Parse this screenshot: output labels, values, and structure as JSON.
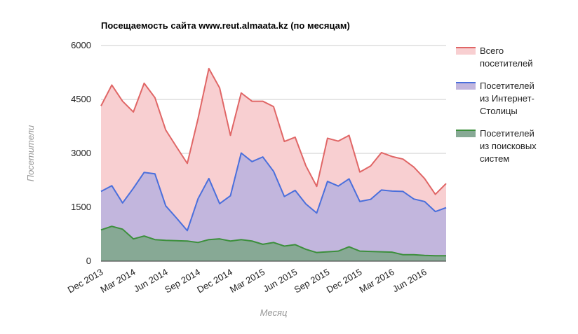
{
  "chart_data": {
    "type": "area",
    "title": "Посещаемость сайта www.reut.almaata.kz (по месяцам)",
    "xlabel": "Месяц",
    "ylabel": "Посетители",
    "ylim": [
      0,
      6000
    ],
    "yticks": [
      "0",
      "1500",
      "3000",
      "4500",
      "6000"
    ],
    "grid": true,
    "legend": "right",
    "x": [
      "Dec 2013",
      "Jan 2014",
      "Feb 2014",
      "Mar 2014",
      "Apr 2014",
      "May 2014",
      "Jun 2014",
      "Jul 2014",
      "Aug 2014",
      "Sep 2014",
      "Oct 2014",
      "Nov 2014",
      "Dec 2014",
      "Jan 2015",
      "Feb 2015",
      "Mar 2015",
      "Apr 2015",
      "May 2015",
      "Jun 2015",
      "Jul 2015",
      "Aug 2015",
      "Sep 2015",
      "Oct 2015",
      "Nov 2015",
      "Dec 2015",
      "Jan 2016",
      "Feb 2016",
      "Mar 2016",
      "Apr 2016",
      "May 2016",
      "Jun 2016",
      "Jul 2016",
      "Aug 2016"
    ],
    "xtick_labels": [
      "Dec 2013",
      "Mar 2014",
      "Jun 2014",
      "Sep 2014",
      "Dec 2014",
      "Mar 2015",
      "Jun 2015",
      "Sep 2015",
      "Dec 2015",
      "Mar 2016",
      "Jun 2016"
    ],
    "series": [
      {
        "name": "Всего посетителей",
        "legend_lines": [
          "Всего",
          "посетителей"
        ],
        "color": "#e06666",
        "fill": "#f8cfd1",
        "values": [
          4320,
          4900,
          4450,
          4150,
          4950,
          4550,
          3650,
          3180,
          2720,
          3970,
          5360,
          4820,
          3500,
          4680,
          4450,
          4450,
          4300,
          3330,
          3450,
          2650,
          2080,
          3420,
          3340,
          3500,
          2480,
          2650,
          3020,
          2910,
          2840,
          2620,
          2300,
          1860,
          2160
        ]
      },
      {
        "name": "Посетителей из Интернет-Столицы",
        "legend_lines": [
          "Посетителей",
          "из Интернет-",
          "Столицы"
        ],
        "color": "#4a6fdc",
        "fill": "#c2b6dd",
        "values": [
          1940,
          2100,
          1620,
          2030,
          2470,
          2430,
          1540,
          1200,
          850,
          1740,
          2300,
          1600,
          1820,
          3010,
          2770,
          2900,
          2500,
          1800,
          1970,
          1590,
          1340,
          2220,
          2090,
          2290,
          1660,
          1720,
          1980,
          1950,
          1940,
          1730,
          1660,
          1380,
          1490
        ]
      },
      {
        "name": "Посетителей из поисковых систем",
        "legend_lines": [
          "Посетителей",
          "из поисковых",
          "систем"
        ],
        "color": "#3c8f3c",
        "fill": "#87a995",
        "values": [
          870,
          970,
          890,
          620,
          700,
          600,
          580,
          570,
          560,
          520,
          600,
          620,
          560,
          600,
          560,
          470,
          520,
          420,
          460,
          330,
          240,
          260,
          280,
          400,
          280,
          270,
          260,
          250,
          180,
          180,
          160,
          150,
          150
        ]
      }
    ]
  }
}
